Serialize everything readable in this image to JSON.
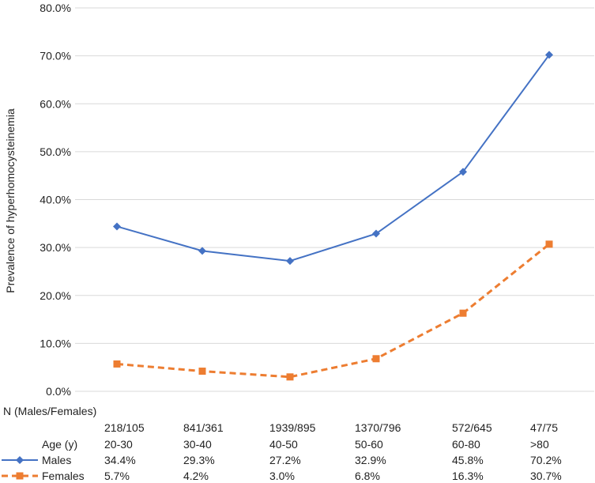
{
  "chart_data": {
    "type": "line",
    "title": "",
    "ylabel": "Prevalence of hyperhomocysteinemia",
    "xlabel": "",
    "ylim": [
      0,
      80
    ],
    "y_ticks": [
      0,
      10,
      20,
      30,
      40,
      50,
      60,
      70,
      80
    ],
    "y_tick_labels": [
      "0.0%",
      "10.0%",
      "20.0%",
      "30.0%",
      "40.0%",
      "50.0%",
      "60.0%",
      "70.0%",
      "80.0%"
    ],
    "grid": true,
    "categories": [
      "20-30",
      "30-40",
      "40-50",
      "50-60",
      "60-80",
      ">80"
    ],
    "series": [
      {
        "name": "Males",
        "color": "#4472C4",
        "marker": "diamond",
        "line_style": "solid",
        "values": [
          34.4,
          29.3,
          27.2,
          32.9,
          45.8,
          70.2
        ],
        "value_labels": [
          "34.4%",
          "29.3%",
          "27.2%",
          "32.9%",
          "45.8%",
          "70.2%"
        ]
      },
      {
        "name": "Females",
        "color": "#ED7D31",
        "marker": "square",
        "line_style": "dashed",
        "values": [
          5.7,
          4.2,
          3.0,
          6.8,
          16.3,
          30.7
        ],
        "value_labels": [
          "5.7%",
          "4.2%",
          "3.0%",
          "6.8%",
          "16.3%",
          "30.7%"
        ]
      }
    ],
    "table": {
      "n_header": "N (Males/Females)",
      "n_values": [
        "218/105",
        "841/361",
        "1939/895",
        "1370/796",
        "572/645",
        "47/75"
      ],
      "age_label": "Age (y)"
    }
  }
}
